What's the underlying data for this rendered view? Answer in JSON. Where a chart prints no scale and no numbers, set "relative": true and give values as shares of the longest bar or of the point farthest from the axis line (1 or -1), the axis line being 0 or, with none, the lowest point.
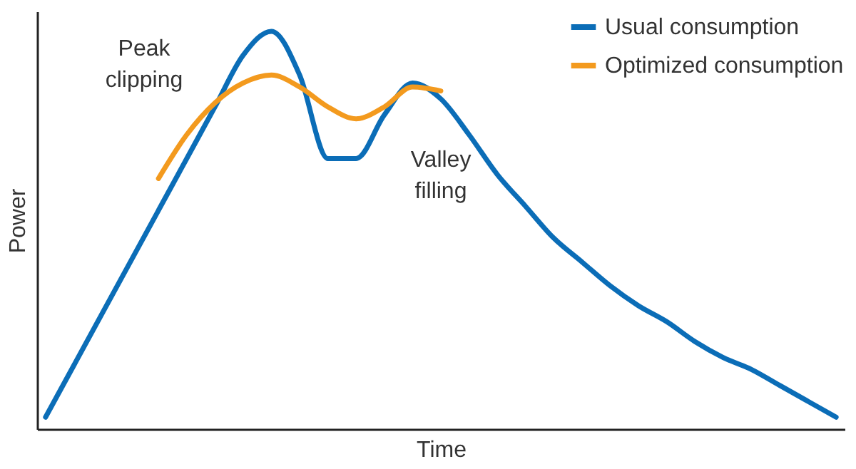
{
  "chart_data": {
    "type": "line",
    "relative": true,
    "xlabel": "Time",
    "ylabel": "Power",
    "categories": [
      null,
      null,
      null,
      null,
      null,
      null,
      null,
      null,
      null,
      null,
      null,
      null,
      null,
      null,
      null,
      null,
      null,
      null,
      null,
      null,
      null,
      null,
      null,
      null,
      null,
      null,
      null,
      null,
      null
    ],
    "series": [
      {
        "name": "Usual consumption",
        "color": "#0b6db7",
        "values": [
          0.03,
          0.16,
          0.29,
          0.42,
          0.55,
          0.68,
          0.81,
          0.94,
          1,
          0.89,
          0.68,
          0.68,
          0.79,
          0.87,
          0.83,
          0.74,
          0.64,
          0.56,
          0.48,
          0.42,
          0.36,
          0.31,
          0.27,
          0.22,
          0.18,
          0.15,
          0.11,
          0.07,
          0.03
        ]
      },
      {
        "name": "Optimized consumption",
        "color": "#f39a1e",
        "values": [
          null,
          null,
          null,
          null,
          0.63,
          0.74,
          0.82,
          0.87,
          0.89,
          0.86,
          0.81,
          0.78,
          0.81,
          0.86,
          0.85,
          null,
          null,
          null,
          null,
          null,
          null,
          null,
          null,
          null,
          null,
          null,
          null,
          null,
          null
        ]
      }
    ],
    "annotations": [
      "Peak clipping",
      "Valley filling"
    ],
    "legend": "top right",
    "marker": "none",
    "line_style": "solid",
    "grid": false
  }
}
